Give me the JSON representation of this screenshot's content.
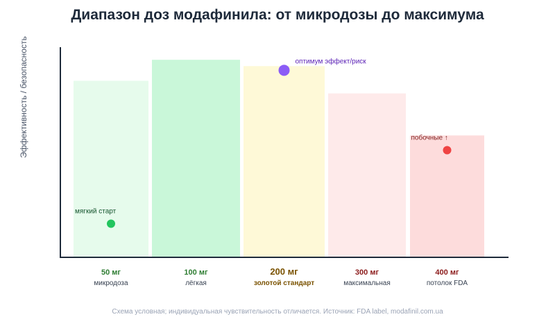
{
  "chart_data": {
    "type": "bar",
    "title": "Диапазон доз модафинила: от микродозы до максимума",
    "ylabel": "Эффективность / безопасность",
    "xlabel": "",
    "ylim": [
      0,
      100
    ],
    "categories": [
      {
        "value": "50 мг",
        "desc": "микродоза",
        "color": "#e6fbec",
        "label_color": "#2e7d32",
        "highlight": false
      },
      {
        "value": "100 мг",
        "desc": "лёгкая",
        "color": "#c9f7d9",
        "label_color": "#2e7d32",
        "highlight": false
      },
      {
        "value": "200 мг",
        "desc": "золотой стандарт",
        "color": "#fef9d7",
        "label_color": "#7a5200",
        "highlight": true
      },
      {
        "value": "300 мг",
        "desc": "максимальная",
        "color": "#feeaea",
        "label_color": "#8b1a1a",
        "highlight": false
      },
      {
        "value": "400 мг",
        "desc": "потолок FDA",
        "color": "#fddcdc",
        "label_color": "#8b1a1a",
        "highlight": false
      }
    ],
    "values": [
      84,
      94,
      91,
      78,
      58
    ],
    "points": [
      {
        "category_index": 0,
        "y": 16,
        "label": "мягкий старт",
        "color": "#22c55e",
        "label_color": "#14532d",
        "label_side": "above"
      },
      {
        "category_index": 2,
        "y": 89,
        "label": "оптимум эффект/риск",
        "color": "#8b5cf6",
        "label_color": "#5b21b6",
        "label_side": "right"
      },
      {
        "category_index": 4,
        "y": 51,
        "label": "побочные ↑",
        "color": "#ef4444",
        "label_color": "#7f1d1d",
        "label_side": "above"
      }
    ],
    "grid": false,
    "legend": "none"
  },
  "source": "Схема условная; индивидуальная чувствительность отличается. Источник: FDA label, modafinil.com.ua"
}
